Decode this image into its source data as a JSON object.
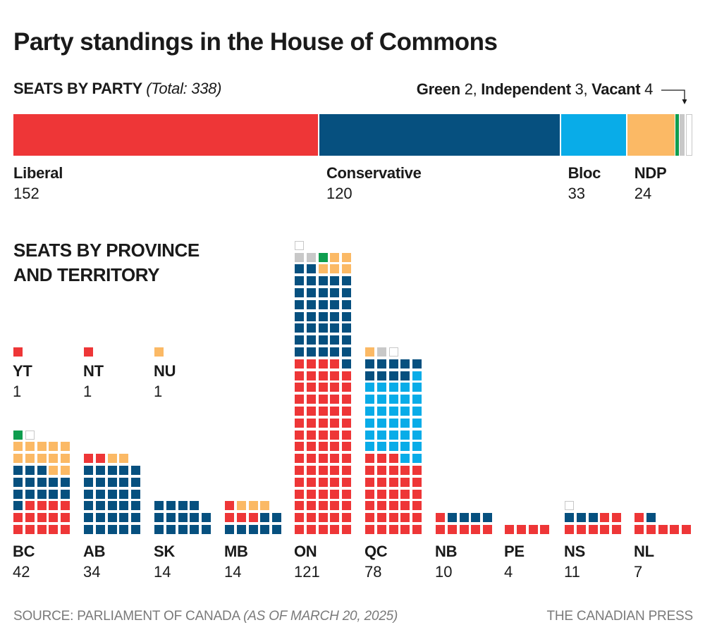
{
  "title": "Party standings in the House of Commons",
  "seats_by_party": {
    "heading": "SEATS BY PARTY",
    "total_note": "(Total: 338)",
    "small_parties": [
      {
        "name": "Green",
        "value": "2",
        "sep": ", "
      },
      {
        "name": "Independent",
        "value": "3",
        "sep": ", "
      },
      {
        "name": "Vacant",
        "value": "4",
        "sep": ""
      }
    ]
  },
  "seats_by_province_heading": [
    "SEATS BY PROVINCE",
    "AND TERRITORY"
  ],
  "footer": {
    "source": "SOURCE: PARLIAMENT OF CANADA",
    "source_note": "(AS OF MARCH 20, 2025)",
    "credit": "THE CANADIAN PRESS"
  },
  "colors": {
    "Liberal": "#ee3637",
    "Conservative": "#06507f",
    "Bloc": "#09ace8",
    "NDP": "#fbb965",
    "Green": "#0e9d4e",
    "Independent": "#c8c8c8",
    "Vacant": "#ffffff"
  },
  "chart_data": [
    {
      "type": "bar",
      "orientation": "horizontal-stacked",
      "title": "SEATS BY PARTY (Total: 338)",
      "total": 338,
      "categories": [
        "Liberal",
        "Conservative",
        "Bloc",
        "NDP",
        "Green",
        "Independent",
        "Vacant"
      ],
      "values": [
        152,
        120,
        33,
        24,
        2,
        3,
        4
      ],
      "labeled": [
        "Liberal",
        "Conservative",
        "Bloc",
        "NDP"
      ]
    },
    {
      "type": "waffle",
      "title": "SEATS BY PROVINCE AND TERRITORY",
      "party_order": [
        "Liberal",
        "Conservative",
        "Bloc",
        "NDP",
        "Green",
        "Independent",
        "Vacant"
      ],
      "groups": [
        {
          "code": "YT",
          "total": 1,
          "seats": [
            "Liberal"
          ]
        },
        {
          "code": "NT",
          "total": 1,
          "seats": [
            "Liberal"
          ]
        },
        {
          "code": "NU",
          "total": 1,
          "seats": [
            "NDP"
          ]
        },
        {
          "code": "BC",
          "total": 42,
          "rows": [
            [
              "Liberal",
              "Liberal",
              "Liberal",
              "Liberal",
              "Liberal"
            ],
            [
              "Liberal",
              "Liberal",
              "Liberal",
              "Liberal",
              "Liberal"
            ],
            [
              "Conservative",
              "Liberal",
              "Liberal",
              "Liberal",
              "Liberal"
            ],
            [
              "Conservative",
              "Conservative",
              "Conservative",
              "Conservative",
              "Conservative"
            ],
            [
              "Conservative",
              "Conservative",
              "Conservative",
              "Conservative",
              "Conservative"
            ],
            [
              "Conservative",
              "Conservative",
              "Conservative",
              "NDP",
              "NDP"
            ],
            [
              "NDP",
              "NDP",
              "NDP",
              "NDP",
              "NDP"
            ],
            [
              "NDP",
              "NDP",
              "NDP",
              "NDP",
              "NDP"
            ],
            [
              "Green",
              "Vacant"
            ]
          ]
        },
        {
          "code": "AB",
          "total": 34,
          "rows": [
            [
              "Conservative",
              "Conservative",
              "Conservative",
              "Conservative",
              "Conservative"
            ],
            [
              "Conservative",
              "Conservative",
              "Conservative",
              "Conservative",
              "Conservative"
            ],
            [
              "Conservative",
              "Conservative",
              "Conservative",
              "Conservative",
              "Conservative"
            ],
            [
              "Conservative",
              "Conservative",
              "Conservative",
              "Conservative",
              "Conservative"
            ],
            [
              "Conservative",
              "Conservative",
              "Conservative",
              "Conservative",
              "Conservative"
            ],
            [
              "Conservative",
              "Conservative",
              "Conservative",
              "Conservative",
              "Conservative"
            ],
            [
              "Liberal",
              "Liberal",
              "NDP",
              "NDP"
            ]
          ]
        },
        {
          "code": "SK",
          "total": 14,
          "rows": [
            [
              "Conservative",
              "Conservative",
              "Conservative",
              "Conservative",
              "Conservative"
            ],
            [
              "Conservative",
              "Conservative",
              "Conservative",
              "Conservative",
              "Conservative"
            ],
            [
              "Conservative",
              "Conservative",
              "Conservative",
              "Conservative"
            ]
          ]
        },
        {
          "code": "MB",
          "total": 14,
          "rows": [
            [
              "Conservative",
              "Conservative",
              "Conservative",
              "Conservative",
              "Conservative"
            ],
            [
              "Liberal",
              "Liberal",
              "Liberal",
              "Conservative",
              "Conservative"
            ],
            [
              "Liberal",
              "NDP",
              "NDP",
              "NDP"
            ]
          ]
        },
        {
          "code": "ON",
          "total": 121,
          "rows": [
            [
              "Liberal",
              "Liberal",
              "Liberal",
              "Liberal",
              "Liberal"
            ],
            [
              "Liberal",
              "Liberal",
              "Liberal",
              "Liberal",
              "Liberal"
            ],
            [
              "Liberal",
              "Liberal",
              "Liberal",
              "Liberal",
              "Liberal"
            ],
            [
              "Liberal",
              "Liberal",
              "Liberal",
              "Liberal",
              "Liberal"
            ],
            [
              "Liberal",
              "Liberal",
              "Liberal",
              "Liberal",
              "Liberal"
            ],
            [
              "Liberal",
              "Liberal",
              "Liberal",
              "Liberal",
              "Liberal"
            ],
            [
              "Liberal",
              "Liberal",
              "Liberal",
              "Liberal",
              "Liberal"
            ],
            [
              "Liberal",
              "Liberal",
              "Liberal",
              "Liberal",
              "Liberal"
            ],
            [
              "Liberal",
              "Liberal",
              "Liberal",
              "Liberal",
              "Liberal"
            ],
            [
              "Liberal",
              "Liberal",
              "Liberal",
              "Liberal",
              "Liberal"
            ],
            [
              "Liberal",
              "Liberal",
              "Liberal",
              "Liberal",
              "Liberal"
            ],
            [
              "Liberal",
              "Liberal",
              "Liberal",
              "Liberal",
              "Liberal"
            ],
            [
              "Liberal",
              "Liberal",
              "Liberal",
              "Liberal",
              "Liberal"
            ],
            [
              "Liberal",
              "Liberal",
              "Liberal",
              "Liberal",
              "Liberal"
            ],
            [
              "Liberal",
              "Liberal",
              "Liberal",
              "Liberal",
              "Conservative"
            ],
            [
              "Conservative",
              "Conservative",
              "Conservative",
              "Conservative",
              "Conservative"
            ],
            [
              "Conservative",
              "Conservative",
              "Conservative",
              "Conservative",
              "Conservative"
            ],
            [
              "Conservative",
              "Conservative",
              "Conservative",
              "Conservative",
              "Conservative"
            ],
            [
              "Conservative",
              "Conservative",
              "Conservative",
              "Conservative",
              "Conservative"
            ],
            [
              "Conservative",
              "Conservative",
              "Conservative",
              "Conservative",
              "Conservative"
            ],
            [
              "Conservative",
              "Conservative",
              "Conservative",
              "Conservative",
              "Conservative"
            ],
            [
              "Conservative",
              "Conservative",
              "Conservative",
              "Conservative",
              "Conservative"
            ],
            [
              "Conservative",
              "Conservative",
              "NDP",
              "NDP",
              "NDP"
            ],
            [
              "Independent",
              "Independent",
              "Green",
              "NDP",
              "NDP"
            ],
            [
              "Vacant"
            ]
          ]
        },
        {
          "code": "QC",
          "total": 78,
          "rows": [
            [
              "Liberal",
              "Liberal",
              "Liberal",
              "Liberal",
              "Liberal"
            ],
            [
              "Liberal",
              "Liberal",
              "Liberal",
              "Liberal",
              "Liberal"
            ],
            [
              "Liberal",
              "Liberal",
              "Liberal",
              "Liberal",
              "Liberal"
            ],
            [
              "Liberal",
              "Liberal",
              "Liberal",
              "Liberal",
              "Liberal"
            ],
            [
              "Liberal",
              "Liberal",
              "Liberal",
              "Liberal",
              "Liberal"
            ],
            [
              "Liberal",
              "Liberal",
              "Liberal",
              "Liberal",
              "Liberal"
            ],
            [
              "Liberal",
              "Liberal",
              "Liberal",
              "Bloc",
              "Bloc"
            ],
            [
              "Bloc",
              "Bloc",
              "Bloc",
              "Bloc",
              "Bloc"
            ],
            [
              "Bloc",
              "Bloc",
              "Bloc",
              "Bloc",
              "Bloc"
            ],
            [
              "Bloc",
              "Bloc",
              "Bloc",
              "Bloc",
              "Bloc"
            ],
            [
              "Bloc",
              "Bloc",
              "Bloc",
              "Bloc",
              "Bloc"
            ],
            [
              "Bloc",
              "Bloc",
              "Bloc",
              "Bloc",
              "Bloc"
            ],
            [
              "Bloc",
              "Bloc",
              "Bloc",
              "Bloc",
              "Bloc"
            ],
            [
              "Conservative",
              "Conservative",
              "Conservative",
              "Conservative",
              "Bloc"
            ],
            [
              "Conservative",
              "Conservative",
              "Conservative",
              "Conservative",
              "Conservative"
            ],
            [
              "NDP",
              "Independent",
              "Vacant"
            ]
          ]
        },
        {
          "code": "NB",
          "total": 10,
          "rows": [
            [
              "Liberal",
              "Liberal",
              "Liberal",
              "Liberal",
              "Liberal"
            ],
            [
              "Liberal",
              "Conservative",
              "Conservative",
              "Conservative",
              "Conservative"
            ]
          ]
        },
        {
          "code": "PE",
          "total": 4,
          "rows": [
            [
              "Liberal",
              "Liberal",
              "Liberal",
              "Liberal"
            ]
          ]
        },
        {
          "code": "NS",
          "total": 11,
          "rows": [
            [
              "Liberal",
              "Liberal",
              "Liberal",
              "Liberal",
              "Liberal"
            ],
            [
              "Conservative",
              "Conservative",
              "Conservative",
              "Liberal",
              "Liberal"
            ],
            [
              "Vacant"
            ]
          ]
        },
        {
          "code": "NL",
          "total": 7,
          "rows": [
            [
              "Liberal",
              "Liberal",
              "Liberal",
              "Liberal",
              "Liberal"
            ],
            [
              "Liberal",
              "Conservative"
            ]
          ]
        }
      ]
    }
  ]
}
